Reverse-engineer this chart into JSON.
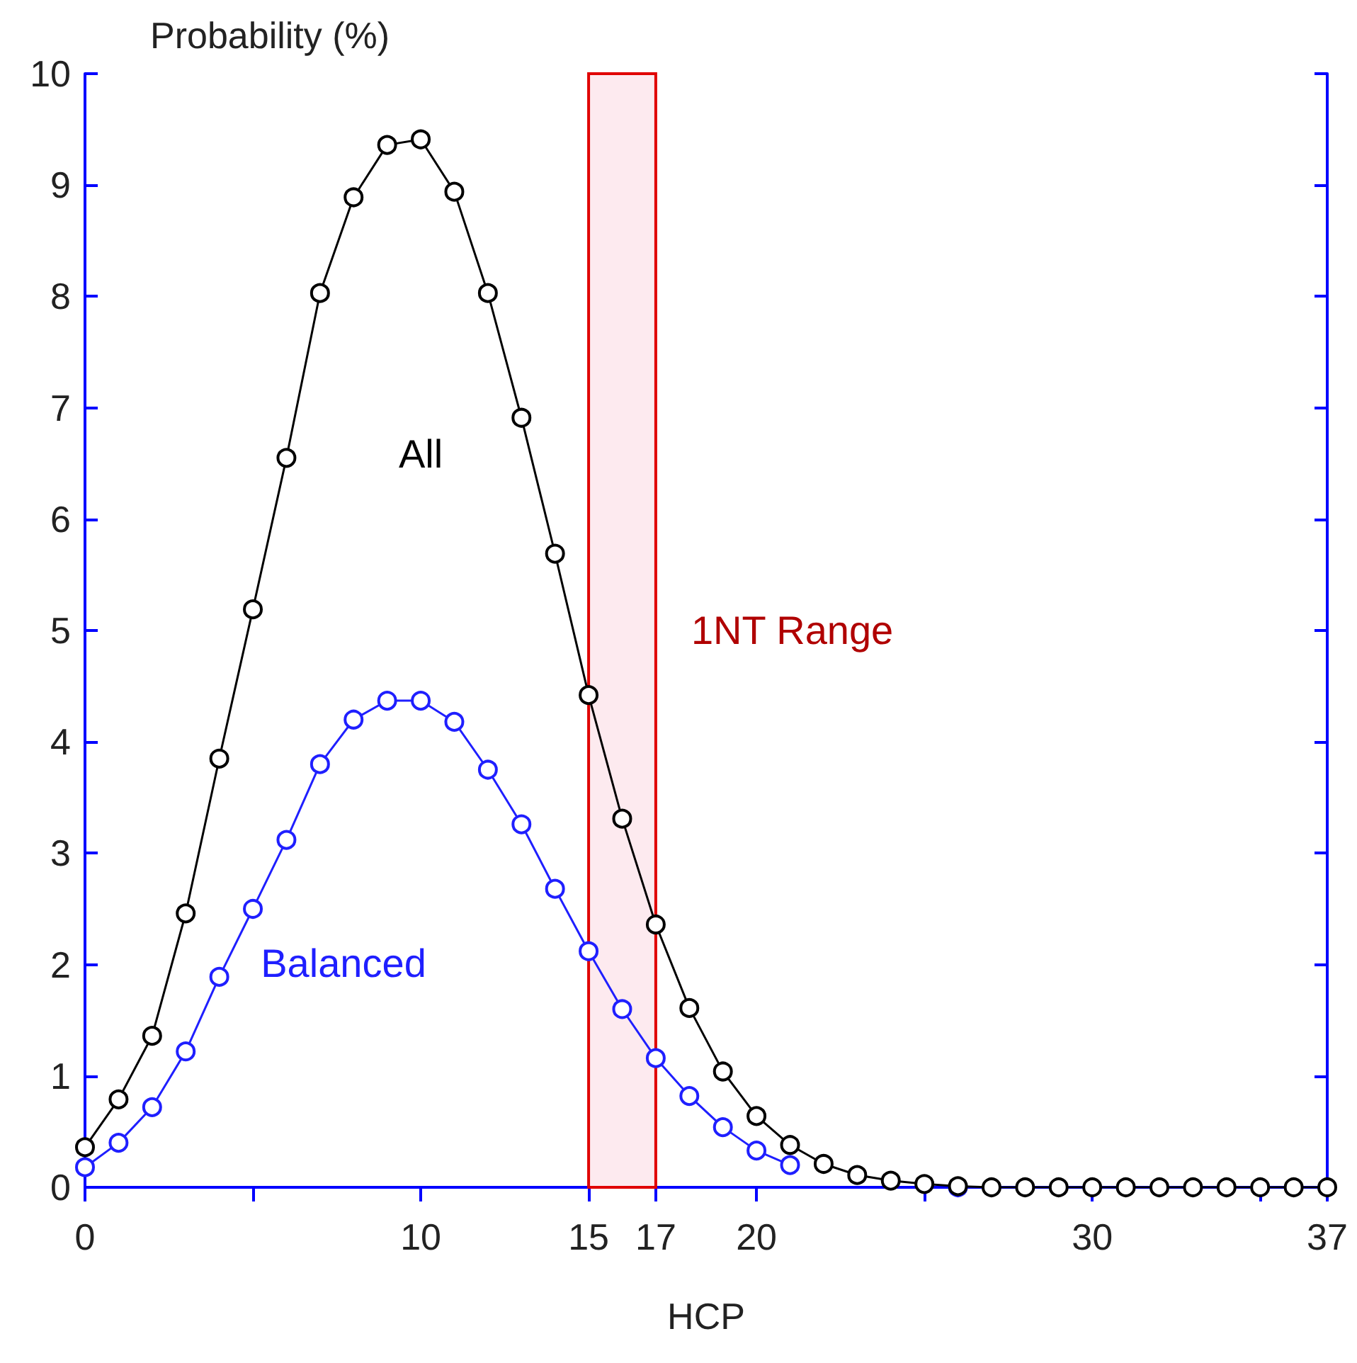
{
  "chart_data": {
    "type": "line",
    "ylabel": "Probability (%)",
    "xlabel": "HCP",
    "x": [
      0,
      1,
      2,
      3,
      4,
      5,
      6,
      7,
      8,
      9,
      10,
      11,
      12,
      13,
      14,
      15,
      16,
      17,
      18,
      19,
      20,
      21,
      22,
      23,
      24,
      25,
      26,
      27,
      28,
      29,
      30,
      31,
      32,
      33,
      34,
      35,
      36,
      37
    ],
    "series": [
      {
        "name": "All",
        "color": "#000000",
        "values": [
          0.36,
          0.79,
          1.36,
          2.46,
          3.85,
          5.19,
          6.55,
          8.03,
          8.89,
          9.36,
          9.41,
          8.94,
          8.03,
          6.91,
          5.69,
          4.42,
          3.31,
          2.36,
          1.61,
          1.04,
          0.64,
          0.38,
          0.21,
          0.11,
          0.06,
          0.03,
          0.01,
          0,
          0,
          0,
          0,
          0,
          0,
          0,
          0,
          0,
          0,
          0
        ]
      },
      {
        "name": "Balanced",
        "color": "#1f1fff",
        "x": [
          0,
          1,
          2,
          3,
          4,
          5,
          6,
          7,
          8,
          9,
          10,
          11,
          12,
          13,
          14,
          15,
          16,
          17,
          18,
          19,
          20,
          21,
          22,
          23,
          24,
          25,
          26
        ],
        "values": [
          0.18,
          0.4,
          0.72,
          1.22,
          1.89,
          2.5,
          3.12,
          3.8,
          4.2,
          4.37,
          4.37,
          4.18,
          3.75,
          3.26,
          2.68,
          2.12,
          1.6,
          1.16,
          0.82,
          0.54,
          0.33,
          0.2,
          null,
          null,
          null,
          null,
          0
        ]
      }
    ],
    "xlim": [
      0,
      37
    ],
    "xticks": [
      0,
      {
        "value": 5,
        "label": null
      },
      10,
      15,
      17,
      20,
      {
        "value": 25,
        "label": null
      },
      30,
      {
        "value": 35,
        "label": null
      },
      37
    ],
    "ylim": [
      0,
      10
    ],
    "yticks": [
      0,
      1,
      2,
      3,
      4,
      5,
      6,
      7,
      8,
      9,
      10
    ],
    "bands": [
      {
        "axis": "x",
        "from": 15,
        "to": 17,
        "label": "1NT Range",
        "color": "#fdeaef"
      }
    ],
    "grid": false,
    "legend": false,
    "marker": "circle",
    "line_style": "solid"
  }
}
